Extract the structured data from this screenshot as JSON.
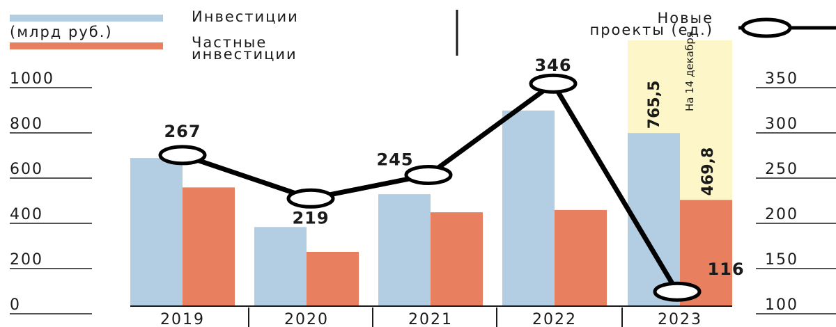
{
  "chart_data": {
    "type": "bar",
    "categories": [
      "2019",
      "2020",
      "2021",
      "2022",
      "2023"
    ],
    "series": [
      {
        "name": "Инвестиции",
        "type": "bar",
        "axis": "left",
        "color": "#b3cde3",
        "values": [
          655,
          350,
          495,
          865,
          765.5
        ]
      },
      {
        "name": "Частные инвестиции",
        "type": "bar",
        "axis": "left",
        "color": "#e8805f",
        "values": [
          525,
          240,
          415,
          425,
          469.8
        ]
      },
      {
        "name": "Новые проекты (ед.)",
        "type": "line",
        "axis": "right",
        "color": "#000000",
        "values": [
          267,
          219,
          245,
          346,
          116
        ]
      }
    ],
    "y_left": {
      "ylim": [
        0,
        1000
      ],
      "ticks": [
        "0",
        "200",
        "400",
        "600",
        "800",
        "1000"
      ]
    },
    "y_right": {
      "ylim": [
        100,
        350
      ],
      "ticks": [
        "100",
        "150",
        "200",
        "250",
        "300",
        "350"
      ]
    },
    "bar_labels": {
      "investments_2023": "765,5",
      "private_2023": "469,8"
    },
    "annotation": "На 14 декабря",
    "highlight_color": "#fdf6c9",
    "grid": false
  },
  "legend": {
    "unit_label": "(млрд руб.)",
    "investments_label": "Инвестиции",
    "private_line1": "Частные",
    "private_line2": "инвестиции",
    "projects_line1": "Новые",
    "projects_line2": "проекты (ед.)"
  }
}
